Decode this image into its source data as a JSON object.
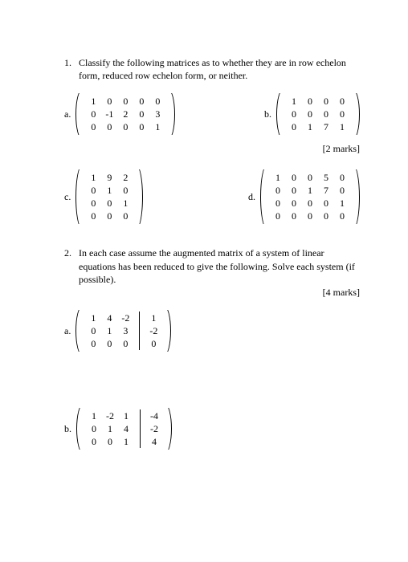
{
  "q1": {
    "number": "1.",
    "text": "Classify the following matrices as to whether they are in row echelon form, reduced row echelon form, or neither.",
    "marks": "[2 marks]",
    "items": {
      "a": {
        "label": "a.",
        "rows": 3,
        "cols": 5,
        "cells": [
          "1",
          "0",
          "0",
          "0",
          "0",
          "0",
          "-1",
          "2",
          "0",
          "3",
          "0",
          "0",
          "0",
          "0",
          "1"
        ]
      },
      "b": {
        "label": "b.",
        "rows": 3,
        "cols": 4,
        "cells": [
          "1",
          "0",
          "0",
          "0",
          "0",
          "0",
          "0",
          "0",
          "0",
          "1",
          "7",
          "1"
        ]
      },
      "c": {
        "label": "c.",
        "rows": 4,
        "cols": 3,
        "cells": [
          "1",
          "9",
          "2",
          "0",
          "1",
          "0",
          "0",
          "0",
          "1",
          "0",
          "0",
          "0"
        ]
      },
      "d": {
        "label": "d.",
        "rows": 4,
        "cols": 5,
        "cells": [
          "1",
          "0",
          "0",
          "5",
          "0",
          "0",
          "0",
          "1",
          "7",
          "0",
          "0",
          "0",
          "0",
          "0",
          "1",
          "0",
          "0",
          "0",
          "0",
          "0"
        ]
      }
    }
  },
  "q2": {
    "number": "2.",
    "text": "In each case assume the augmented matrix of a system of linear equations has been reduced to give the following.  Solve each system (if possible).",
    "marks": "[4 marks]",
    "items": {
      "a": {
        "label": "a.",
        "rows": 3,
        "left_cols": 3,
        "right_cols": 1,
        "left": [
          "1",
          "4",
          "-2",
          "0",
          "1",
          "3",
          "0",
          "0",
          "0"
        ],
        "right": [
          "1",
          "-2",
          "0"
        ]
      },
      "b": {
        "label": "b.",
        "rows": 3,
        "left_cols": 3,
        "right_cols": 1,
        "left": [
          "1",
          "-2",
          "1",
          "0",
          "1",
          "4",
          "0",
          "0",
          "1"
        ],
        "right": [
          "-4",
          "-2",
          "4"
        ]
      }
    }
  }
}
